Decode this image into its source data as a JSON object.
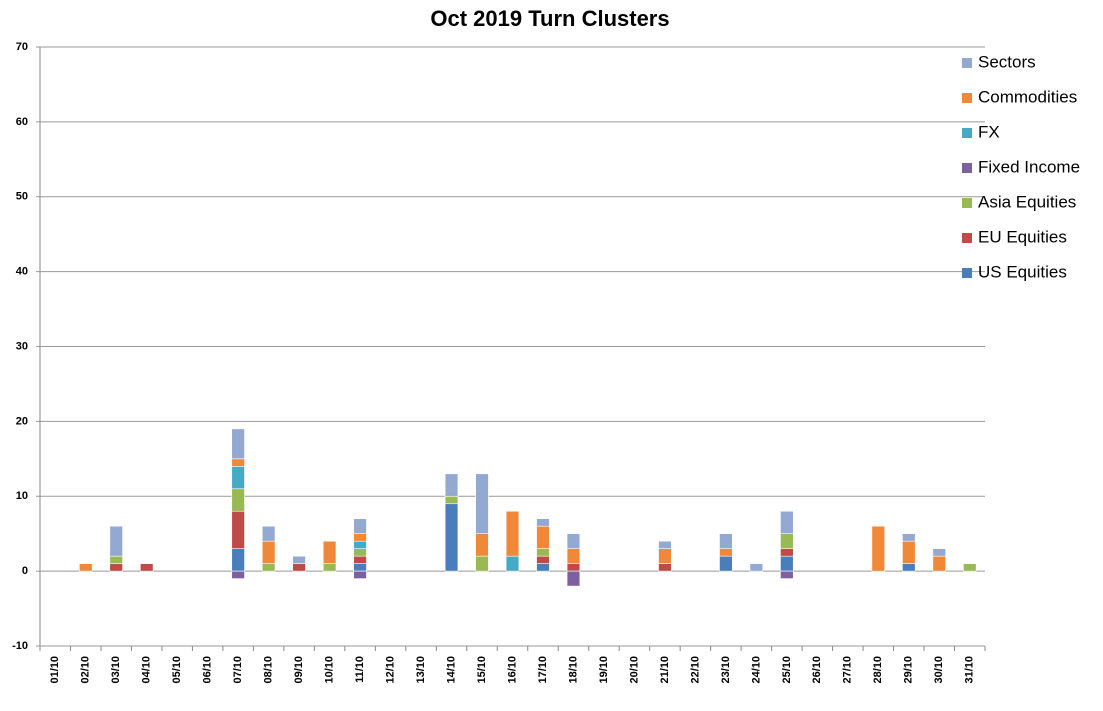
{
  "chart_data": {
    "type": "stacked-bar",
    "title": "Oct 2019 Turn Clusters",
    "categories": [
      "01/10",
      "02/10",
      "03/10",
      "04/10",
      "05/10",
      "06/10",
      "07/10",
      "08/10",
      "09/10",
      "10/10",
      "11/10",
      "12/10",
      "13/10",
      "14/10",
      "15/10",
      "16/10",
      "17/10",
      "18/10",
      "19/10",
      "20/10",
      "21/10",
      "22/10",
      "23/10",
      "24/10",
      "25/10",
      "26/10",
      "27/10",
      "28/10",
      "29/10",
      "30/10",
      "31/10"
    ],
    "series": [
      {
        "name": "US Equities",
        "color": "#4a7ebb",
        "values": [
          0,
          0,
          0,
          0,
          0,
          0,
          3,
          0,
          0,
          0,
          1,
          0,
          0,
          9,
          0,
          0,
          1,
          0,
          0,
          0,
          0,
          0,
          2,
          0,
          2,
          0,
          0,
          0,
          1,
          0,
          0
        ]
      },
      {
        "name": "EU Equities",
        "color": "#be4b48",
        "values": [
          0,
          0,
          1,
          1,
          0,
          0,
          5,
          0,
          1,
          0,
          1,
          0,
          0,
          0,
          0,
          0,
          1,
          1,
          0,
          0,
          1,
          0,
          0,
          0,
          1,
          0,
          0,
          0,
          0,
          0,
          0
        ]
      },
      {
        "name": "Asia Equities",
        "color": "#98b954",
        "values": [
          0,
          0,
          1,
          0,
          0,
          0,
          3,
          1,
          0,
          1,
          1,
          0,
          0,
          1,
          2,
          0,
          1,
          0,
          0,
          0,
          0,
          0,
          0,
          0,
          2,
          0,
          0,
          0,
          0,
          0,
          1
        ]
      },
      {
        "name": "Fixed Income",
        "color": "#7d60a0",
        "values": [
          0,
          0,
          0,
          0,
          0,
          0,
          -1,
          0,
          0,
          0,
          -1,
          0,
          0,
          0,
          0,
          0,
          0,
          -2,
          0,
          0,
          0,
          0,
          0,
          0,
          -1,
          0,
          0,
          0,
          0,
          0,
          0
        ]
      },
      {
        "name": "FX",
        "color": "#46aac5",
        "values": [
          0,
          0,
          0,
          0,
          0,
          0,
          3,
          0,
          0,
          0,
          1,
          0,
          0,
          0,
          0,
          2,
          0,
          0,
          0,
          0,
          0,
          0,
          0,
          0,
          0,
          0,
          0,
          0,
          0,
          0,
          0
        ]
      },
      {
        "name": "Commodities",
        "color": "#f0883a",
        "values": [
          0,
          1,
          0,
          0,
          0,
          0,
          1,
          3,
          0,
          3,
          1,
          0,
          0,
          0,
          3,
          6,
          3,
          2,
          0,
          0,
          2,
          0,
          1,
          0,
          0,
          0,
          0,
          6,
          3,
          2,
          0
        ]
      },
      {
        "name": "Sectors",
        "color": "#94a9d1",
        "values": [
          0,
          0,
          4,
          0,
          0,
          0,
          4,
          2,
          1,
          0,
          2,
          0,
          0,
          3,
          8,
          0,
          1,
          2,
          0,
          0,
          1,
          0,
          2,
          1,
          3,
          0,
          0,
          0,
          1,
          1,
          0
        ]
      }
    ],
    "ylim": [
      -10,
      70
    ],
    "yticks": [
      -10,
      0,
      10,
      20,
      30,
      40,
      50,
      60,
      70
    ],
    "grid": true,
    "legend": "right"
  }
}
